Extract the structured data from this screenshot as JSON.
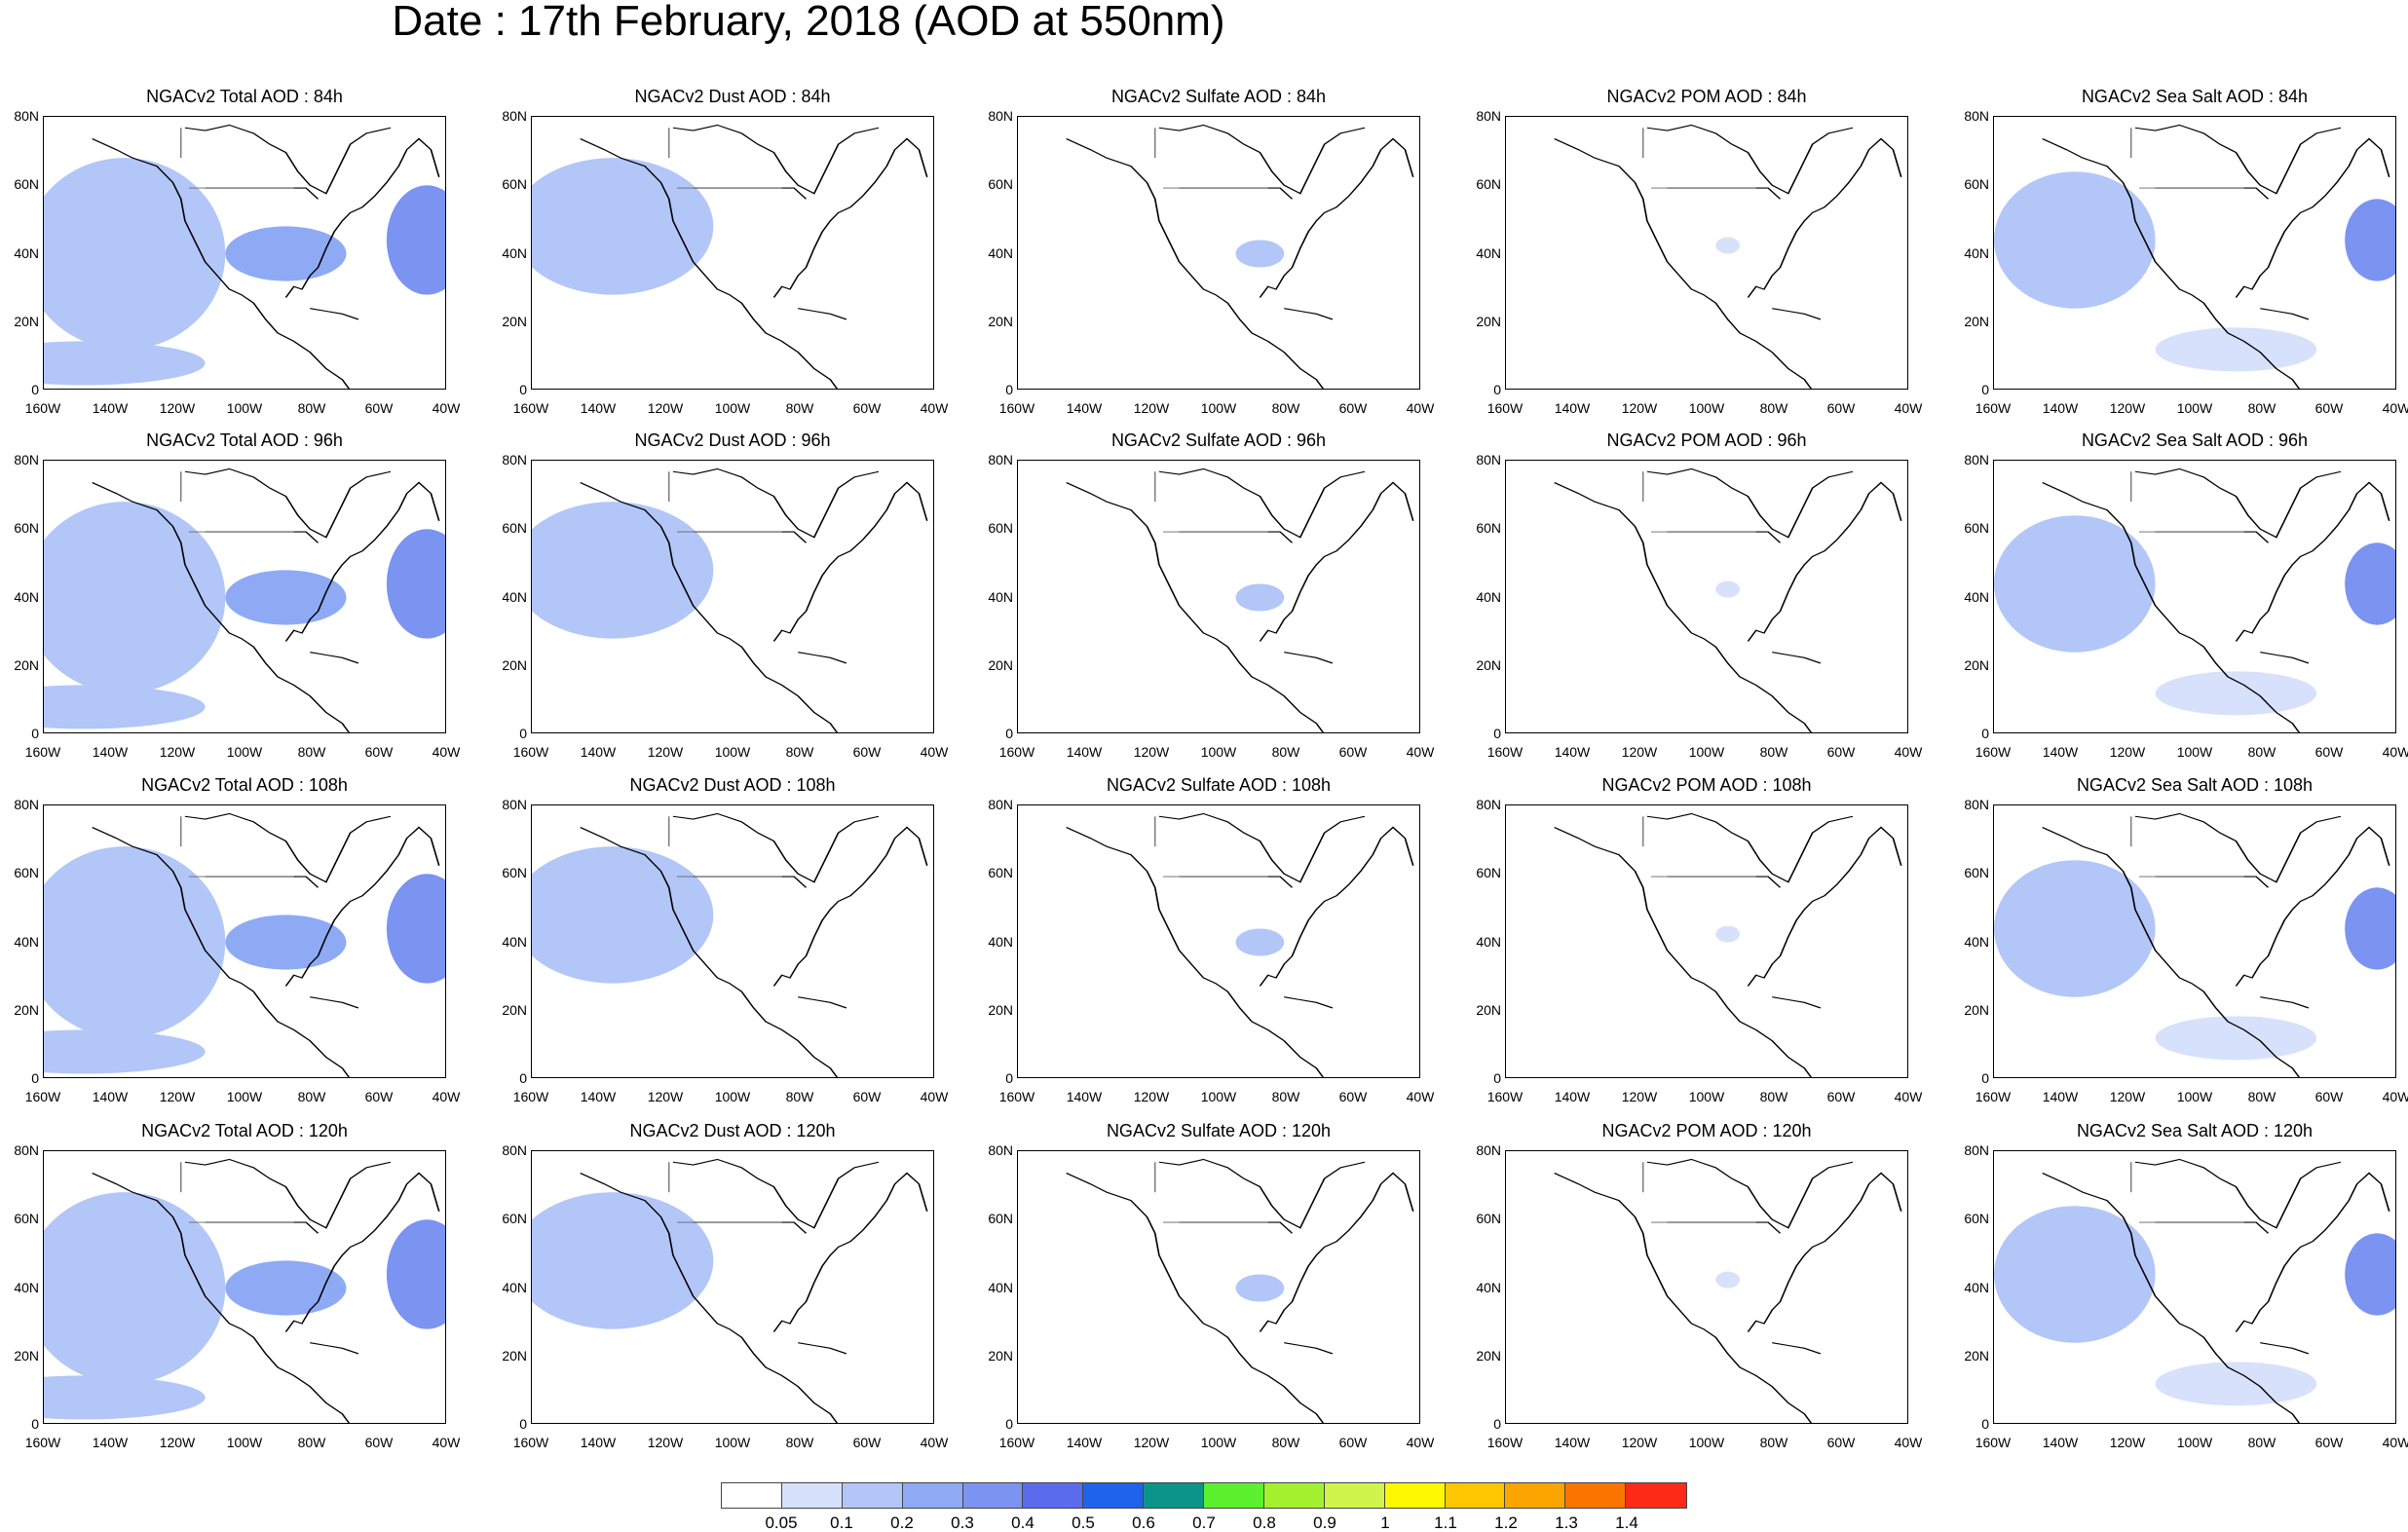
{
  "title": "Date : 17th February, 2018 (AOD at 550nm)",
  "lat_ticks": [
    "80N",
    "60N",
    "40N",
    "20N",
    "0"
  ],
  "lon_ticks": [
    "160W",
    "140W",
    "120W",
    "100W",
    "80W",
    "60W",
    "40W"
  ],
  "colorbar": {
    "colors": [
      "#ffffff",
      "#d7e1fb",
      "#b2c6f8",
      "#8eaaf5",
      "#7b93f1",
      "#5a6ced",
      "#1f63ec",
      "#0c948a",
      "#5bf12f",
      "#a3f12e",
      "#d1f44c",
      "#fcf801",
      "#fcc600",
      "#fca400",
      "#fc7400",
      "#fc2b18"
    ],
    "labels": [
      "0.05",
      "0.1",
      "0.2",
      "0.3",
      "0.4",
      "0.5",
      "0.6",
      "0.7",
      "0.8",
      "0.9",
      "1",
      "1.1",
      "1.2",
      "1.3",
      "1.4"
    ]
  },
  "rows": [
    {
      "titles": [
        "NGACv2 Total AOD : 84h",
        "NGACv2 Dust AOD : 84h",
        "NGACv2 Sulfate AOD : 84h",
        "NGACv2 POM AOD : 84h",
        "NGACv2 Sea Salt AOD : 84h"
      ]
    },
    {
      "titles": [
        "NGACv2 Total AOD : 96h",
        "NGACv2 Dust AOD : 96h",
        "NGACv2 Sulfate AOD : 96h",
        "NGACv2 POM AOD : 96h",
        "NGACv2 Sea Salt AOD : 96h"
      ]
    },
    {
      "titles": [
        "NGACv2 Total AOD : 108h",
        "NGACv2 Dust AOD : 108h",
        "NGACv2 Sulfate AOD : 108h",
        "NGACv2 POM AOD : 108h",
        "NGACv2 Sea Salt AOD : 108h"
      ]
    },
    {
      "titles": [
        "NGACv2 Total AOD : 120h",
        "NGACv2 Dust AOD : 120h",
        "NGACv2 Sulfate AOD : 120h",
        "NGACv2 POM AOD : 120h",
        "NGACv2 Sea Salt  AOD : 120h"
      ]
    }
  ]
}
